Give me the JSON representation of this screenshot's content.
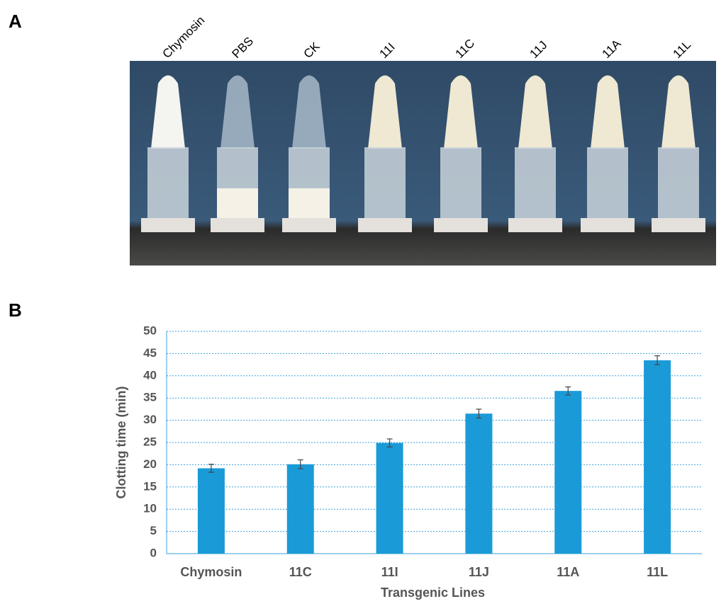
{
  "panels": {
    "a": "A",
    "b": "B"
  },
  "photo": {
    "tube_labels": [
      "Chymosin",
      "PBS",
      "CK",
      "11I",
      "11C",
      "11J",
      "11A",
      "11L"
    ]
  },
  "chart_data": {
    "type": "bar",
    "categories": [
      "Chymosin",
      "11C",
      "11I",
      "11J",
      "11A",
      "11L"
    ],
    "values": [
      19.2,
      20.1,
      24.9,
      31.5,
      36.6,
      43.5
    ],
    "errors": [
      0.9,
      1.0,
      0.9,
      1.0,
      0.9,
      1.0
    ],
    "color": "#1a9bd7",
    "ylim": [
      0,
      50
    ],
    "yticks": [
      0,
      5,
      10,
      15,
      20,
      25,
      30,
      35,
      40,
      45,
      50
    ],
    "grid": true,
    "y_label": "Clotting time (min)",
    "x_label": "Transgenic Lines"
  }
}
